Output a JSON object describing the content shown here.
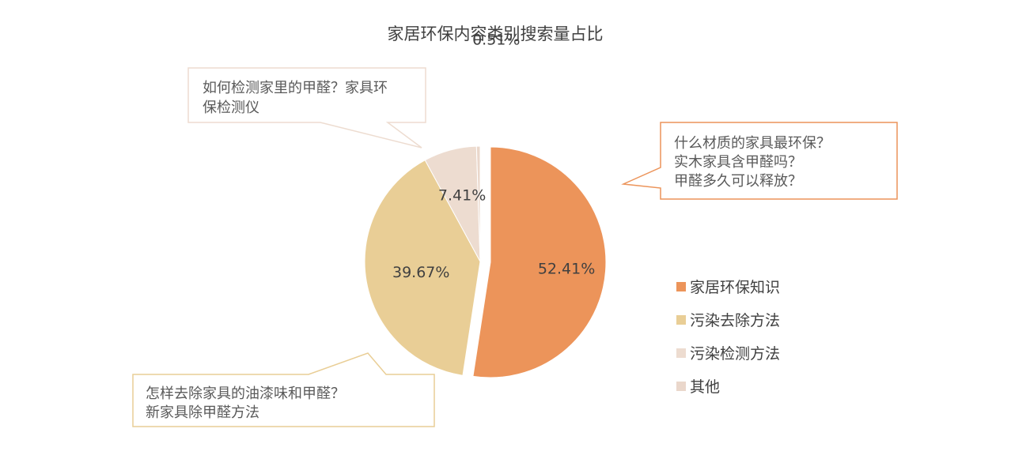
{
  "chart_data": {
    "type": "pie",
    "title": "家居环保内容类别搜索量占比",
    "slices": [
      {
        "name": "家居环保知识",
        "value": 52.41,
        "label": "52.41%",
        "color": "#EC945A"
      },
      {
        "name": "污染去除方法",
        "value": 39.67,
        "label": "39.67%",
        "color": "#E9CE96"
      },
      {
        "name": "污染检测方法",
        "value": 7.41,
        "label": "7.41%",
        "color": "#EDDCD0"
      },
      {
        "name": "其他",
        "value": 0.51,
        "label": "0.51%",
        "color": "#EAD7CB"
      }
    ],
    "legend_position": "right"
  },
  "callouts": {
    "top_left": {
      "lines": [
        "如何检测家里的甲醛？家具环",
        "保检测仪"
      ],
      "color": "#EDDCD0"
    },
    "right": {
      "lines": [
        "什么材质的家具最环保？",
        "实木家具含甲醛吗？",
        "甲醛多久可以释放？"
      ],
      "color": "#EC945A"
    },
    "bottom_left": {
      "lines": [
        "怎样去除家具的油漆味和甲醛？",
        "新家具除甲醛方法"
      ],
      "color": "#E9CE96"
    }
  }
}
